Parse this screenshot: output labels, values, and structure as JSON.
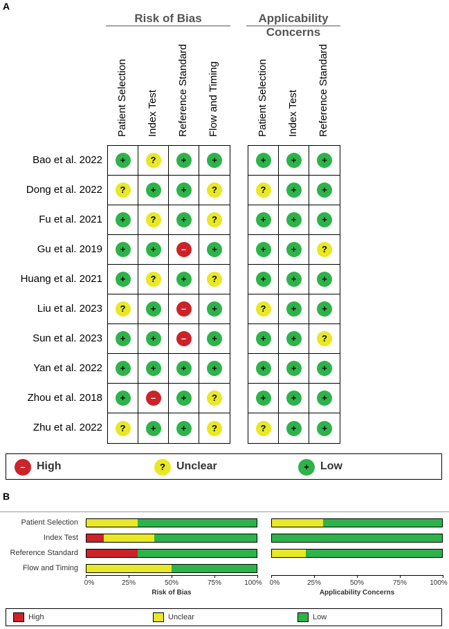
{
  "panel_a": {
    "label": "A",
    "groups": [
      {
        "title": "Risk of Bias",
        "domains": [
          "Patient Selection",
          "Index Test",
          "Reference Standard",
          "Flow and Timing"
        ]
      },
      {
        "title": "Applicability Concerns",
        "domains": [
          "Patient Selection",
          "Index Test",
          "Reference Standard"
        ]
      }
    ],
    "studies": [
      {
        "name": "Bao et al. 2022",
        "rob": [
          "low",
          "unclear",
          "low",
          "low"
        ],
        "app": [
          "low",
          "low",
          "low"
        ]
      },
      {
        "name": "Dong et al. 2022",
        "rob": [
          "unclear",
          "low",
          "low",
          "unclear"
        ],
        "app": [
          "unclear",
          "low",
          "low"
        ]
      },
      {
        "name": "Fu et al. 2021",
        "rob": [
          "low",
          "unclear",
          "low",
          "unclear"
        ],
        "app": [
          "low",
          "low",
          "low"
        ]
      },
      {
        "name": "Gu et al. 2019",
        "rob": [
          "low",
          "low",
          "high",
          "low"
        ],
        "app": [
          "low",
          "low",
          "unclear"
        ]
      },
      {
        "name": "Huang et al. 2021",
        "rob": [
          "low",
          "unclear",
          "low",
          "unclear"
        ],
        "app": [
          "low",
          "low",
          "low"
        ]
      },
      {
        "name": "Liu et al. 2023",
        "rob": [
          "unclear",
          "low",
          "high",
          "low"
        ],
        "app": [
          "unclear",
          "low",
          "low"
        ]
      },
      {
        "name": "Sun et al. 2023",
        "rob": [
          "low",
          "low",
          "high",
          "low"
        ],
        "app": [
          "low",
          "low",
          "unclear"
        ]
      },
      {
        "name": "Yan et al. 2022",
        "rob": [
          "low",
          "low",
          "low",
          "low"
        ],
        "app": [
          "low",
          "low",
          "low"
        ]
      },
      {
        "name": "Zhou et al. 2018",
        "rob": [
          "low",
          "high",
          "low",
          "unclear"
        ],
        "app": [
          "low",
          "low",
          "low"
        ]
      },
      {
        "name": "Zhu et al. 2022",
        "rob": [
          "unclear",
          "low",
          "low",
          "unclear"
        ],
        "app": [
          "unclear",
          "low",
          "low"
        ]
      }
    ],
    "symbols": {
      "low": "+",
      "unclear": "?",
      "high": "–"
    },
    "legend": [
      {
        "key": "high",
        "label": "High"
      },
      {
        "key": "unclear",
        "label": "Unclear"
      },
      {
        "key": "low",
        "label": "Low"
      }
    ]
  },
  "chart_data": {
    "type": "bar",
    "label": "B",
    "orientation": "horizontal-stacked-percent",
    "categories": [
      "Patient Selection",
      "Index Test",
      "Reference Standard",
      "Flow and Timing"
    ],
    "panels": [
      {
        "xlabel": "Risk of Bias",
        "series": [
          {
            "name": "High",
            "values": [
              0,
              10,
              30,
              0
            ]
          },
          {
            "name": "Unclear",
            "values": [
              30,
              30,
              0,
              50
            ]
          },
          {
            "name": "Low",
            "values": [
              70,
              60,
              70,
              50
            ]
          }
        ]
      },
      {
        "xlabel": "Applicability Concerns",
        "series": [
          {
            "name": "High",
            "values": [
              0,
              0,
              0
            ]
          },
          {
            "name": "Unclear",
            "values": [
              30,
              0,
              20
            ]
          },
          {
            "name": "Low",
            "values": [
              70,
              100,
              80
            ]
          }
        ]
      }
    ],
    "xticks": [
      "0%",
      "25%",
      "50%",
      "75%",
      "100%"
    ],
    "xlim": [
      0,
      100
    ],
    "legend": [
      "High",
      "Unclear",
      "Low"
    ]
  },
  "colors": {
    "high": "#cc2229",
    "unclear": "#e8e824",
    "low": "#2db34a",
    "text": "#333333"
  }
}
